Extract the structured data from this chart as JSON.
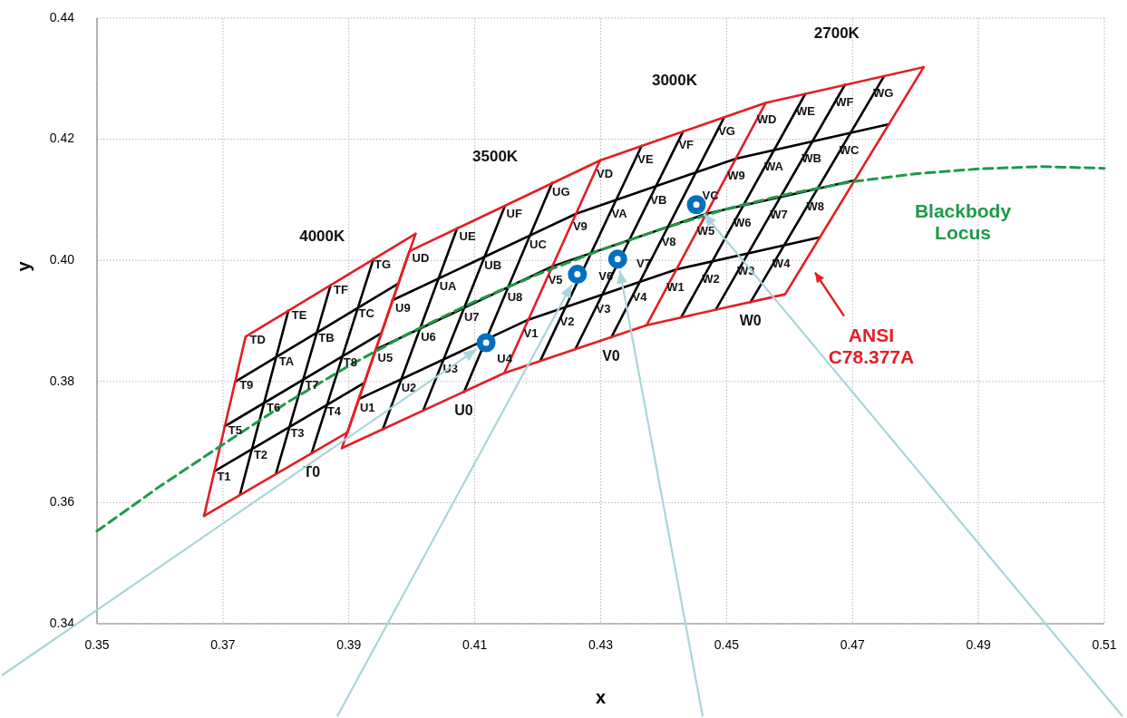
{
  "chart_data": {
    "type": "line",
    "xlabel": "x",
    "ylabel": "y",
    "xlim": [
      0.35,
      0.51
    ],
    "ylim": [
      0.34,
      0.44
    ],
    "xticks": [
      0.35,
      0.37,
      0.39,
      0.41,
      0.43,
      0.45,
      0.47,
      0.49,
      0.51
    ],
    "yticks": [
      0.34,
      0.36,
      0.38,
      {
        "value": 0.4,
        "label": "0.40"
      },
      0.42,
      0.44
    ],
    "grid": true,
    "line_style": "solid",
    "series": [
      {
        "color": "#000000",
        "x": [
          0.3687,
          0.3925
        ],
        "values": [
          0.3652,
          0.3798
        ]
      },
      {
        "color": "#000000",
        "x": [
          0.3703,
          0.3952
        ],
        "values": [
          0.3726,
          0.388
        ]
      },
      {
        "color": "#000000",
        "x": [
          0.372,
          0.3979
        ],
        "values": [
          0.38,
          0.3962
        ]
      },
      {
        "color": "#000000",
        "x": [
          0.3727,
          0.3804
        ],
        "values": [
          0.3613,
          0.3917
        ]
      },
      {
        "color": "#000000",
        "x": [
          0.3784,
          0.3871
        ],
        "values": [
          0.3647,
          0.3959
        ]
      },
      {
        "color": "#000000",
        "x": [
          0.3841,
          0.3939
        ],
        "values": [
          0.3682,
          0.4002
        ]
      },
      {
        "color": "#000000",
        "x": [
          0.3916,
          0.4185,
          0.442,
          0.4648
        ],
        "values": [
          0.3771,
          0.3902,
          0.3985,
          0.4038
        ]
      },
      {
        "color": "#000000",
        "x": [
          0.3943,
          0.4223,
          0.4468,
          0.4703
        ],
        "values": [
          0.3853,
          0.399,
          0.4077,
          0.4132
        ]
      },
      {
        "color": "#000000",
        "x": [
          0.3969,
          0.4261,
          0.4515,
          0.4758
        ],
        "values": [
          0.3934,
          0.4077,
          0.4168,
          0.4225
        ]
      },
      {
        "color": "#000000",
        "x": [
          0.3954,
          0.4072
        ],
        "values": [
          0.3721,
          0.4053
        ]
      },
      {
        "color": "#000000",
        "x": [
          0.4018,
          0.4148
        ],
        "values": [
          0.3752,
          0.409
        ]
      },
      {
        "color": "#000000",
        "x": [
          0.4083,
          0.4223
        ],
        "values": [
          0.3783,
          0.4128
        ]
      },
      {
        "color": "#000000",
        "x": [
          0.4204,
          0.4365
        ],
        "values": [
          0.3834,
          0.4189
        ]
      },
      {
        "color": "#000000",
        "x": [
          0.426,
          0.4431
        ],
        "values": [
          0.3854,
          0.4213
        ]
      },
      {
        "color": "#000000",
        "x": [
          0.4317,
          0.4496
        ],
        "values": [
          0.3873,
          0.4236
        ]
      },
      {
        "color": "#000000",
        "x": [
          0.4428,
          0.4625
        ],
        "values": [
          0.3906,
          0.4275
        ]
      },
      {
        "color": "#000000",
        "x": [
          0.4483,
          0.4688
        ],
        "values": [
          0.3919,
          0.429
        ]
      },
      {
        "color": "#000000",
        "x": [
          0.4538,
          0.475
        ],
        "values": [
          0.3931,
          0.4304
        ]
      },
      {
        "color": "#e31e24",
        "x": [
          0.367,
          0.3736,
          0.4006
        ],
        "values": [
          0.3578,
          0.3874,
          0.4044
        ]
      },
      {
        "color": "#e31e24",
        "x": [
          0.367,
          0.3898,
          0.4006
        ],
        "values": [
          0.3578,
          0.3716,
          0.4044
        ]
      },
      {
        "color": "#e31e24",
        "x": [
          0.3889,
          0.3996,
          0.4299,
          0.4562,
          0.4813
        ],
        "values": [
          0.369,
          0.4015,
          0.4165,
          0.426,
          0.4319
        ]
      },
      {
        "color": "#e31e24",
        "x": [
          0.3889,
          0.4147,
          0.4373,
          0.4593,
          0.4813
        ],
        "values": [
          0.369,
          0.3814,
          0.3893,
          0.3944,
          0.4319
        ]
      },
      {
        "color": "#e31e24",
        "x": [
          0.4147,
          0.4299
        ],
        "values": [
          0.3814,
          0.4165
        ]
      },
      {
        "color": "#e31e24",
        "x": [
          0.4373,
          0.4562
        ],
        "values": [
          0.3893,
          0.426
        ]
      },
      {
        "color": "#1e9a48",
        "line_style": "dashed",
        "x": [
          0.35,
          0.36,
          0.37,
          0.38,
          0.39,
          0.4,
          0.41,
          0.42,
          0.43,
          0.44,
          0.45,
          0.46,
          0.47,
          0.48,
          0.49,
          0.5,
          0.51
        ],
        "values": [
          0.3553,
          0.3627,
          0.3696,
          0.3764,
          0.3826,
          0.3882,
          0.3932,
          0.3977,
          0.4017,
          0.4053,
          0.4085,
          0.411,
          0.413,
          0.4143,
          0.4151,
          0.4155,
          0.4152
        ]
      },
      {
        "type": "scatter",
        "marker": "circle",
        "color": "#0070c0",
        "x": [
          0.4118,
          0.4263,
          0.4327,
          0.4452
        ],
        "values": [
          0.3864,
          0.3977,
          0.4002,
          0.4092
        ]
      }
    ],
    "annotations": [
      "T1",
      "T2",
      "T3",
      "T4",
      "T5",
      "T6",
      "T7",
      "T8",
      "T9",
      "TA",
      "TB",
      "TC",
      "TD",
      "TE",
      "TF",
      "TG",
      "U1",
      "U2",
      "U3",
      "U4",
      "U5",
      "U6",
      "U7",
      "U8",
      "U9",
      "UA",
      "UB",
      "UC",
      "UD",
      "UE",
      "UF",
      "UG",
      "V1",
      "V2",
      "V3",
      "V4",
      "V5",
      "V6",
      "V7",
      "V8",
      "V9",
      "VA",
      "VB",
      "VC",
      "VD",
      "VE",
      "VF",
      "VG",
      "W1",
      "W2",
      "W3",
      "W4",
      "W5",
      "W6",
      "W7",
      "W8",
      "W9",
      "WA",
      "WB",
      "WC",
      "WD",
      "WE",
      "WF",
      "WG",
      "T0",
      "U0",
      "V0",
      "W0",
      "4000K",
      "3500K",
      "3000K",
      "2700K",
      "Blackbody Locus",
      "ANSI C78.377A"
    ]
  }
}
